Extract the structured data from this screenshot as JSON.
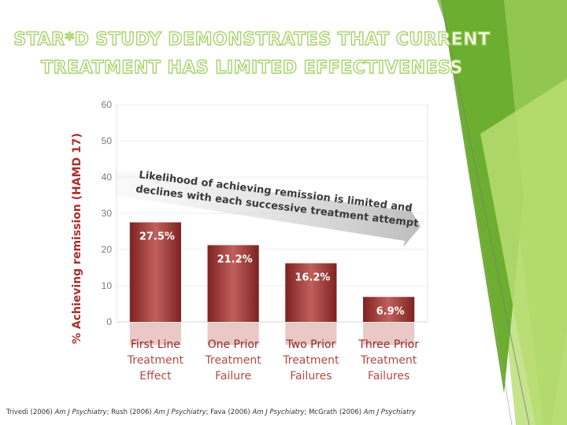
{
  "title": {
    "line1": "STAR*D STUDY DEMONSTRATES THAT CURRENT",
    "line2": "TREATMENT HAS LIMITED EFFECTIVENESS"
  },
  "chart_data": {
    "type": "bar",
    "title": "",
    "ylabel": "% Achieving remission (HAMD 17)",
    "xlabel": "",
    "ylim": [
      0,
      60
    ],
    "yticks": [
      0,
      10,
      20,
      30,
      40,
      50,
      60
    ],
    "categories": [
      [
        "First Line",
        "Treatment",
        "Effect"
      ],
      [
        "One Prior",
        "Treatment",
        "Failure"
      ],
      [
        "Two Prior",
        "Treatment",
        "Failures"
      ],
      [
        "Three Prior",
        "Treatment",
        "Failures"
      ]
    ],
    "values": [
      27.5,
      21.2,
      16.2,
      6.9
    ],
    "value_labels": [
      "27.5%",
      "21.2%",
      "16.2%",
      "6.9%"
    ],
    "annotation": {
      "line1": "Likelihood of achieving remission is limited and",
      "line2": "declines with each successive treatment attempt"
    }
  },
  "citation": {
    "parts": [
      {
        "text": "Trivedi (2006) ",
        "italic": false
      },
      {
        "text": "Am J Psychiatry",
        "italic": true
      },
      {
        "text": "; Rush (2006) ",
        "italic": false
      },
      {
        "text": "Am J Psychiatry",
        "italic": true
      },
      {
        "text": "; Fava (2006) ",
        "italic": false
      },
      {
        "text": "Am J Psychiatry",
        "italic": true
      },
      {
        "text": "; McGrath (2006) ",
        "italic": false
      },
      {
        "text": "Am J Psychiatry",
        "italic": true
      }
    ]
  },
  "colors": {
    "bar_dark": "#8e2a28",
    "bar_light": "#c0605c",
    "axis_text": "#7a7a7a",
    "axis_label": "#a9302c",
    "category_text": "#ffffff",
    "arrow": "#c9c9c9",
    "green_light": "#b7dd72",
    "green_dark": "#6cae2f"
  }
}
